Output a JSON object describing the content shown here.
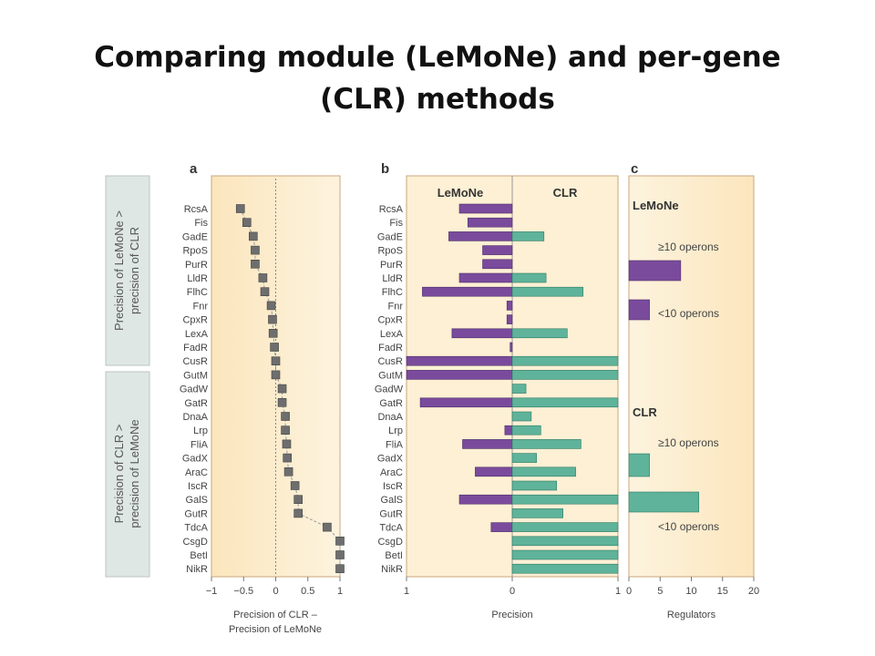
{
  "slide": {
    "title_line1": "Comparing module (LeMoNe) and per-gene",
    "title_line2": "(CLR) methods"
  },
  "figure": {
    "colors": {
      "background": "#fdf0d4",
      "lemone": "#7a4b9c",
      "clr": "#5fb39a",
      "dots": "#6e6e6e",
      "sidebox": "#dfe7e5",
      "frame": "#c9a77a"
    },
    "panels": {
      "a": {
        "letter": "a"
      },
      "b": {
        "letter": "b",
        "left_label": "LeMoNe",
        "right_label": "CLR"
      },
      "c": {
        "letter": "c"
      }
    },
    "side_labels": {
      "upper": [
        "Precision of LeMoNe >",
        "precision of CLR"
      ],
      "lower": [
        "Precision of CLR >",
        "precision of LeMoNe"
      ]
    }
  },
  "chart_data": [
    {
      "panel": "a",
      "type": "scatter",
      "title": "",
      "categories": [
        "RcsA",
        "Fis",
        "GadE",
        "RpoS",
        "PurR",
        "LldR",
        "FlhC",
        "Fnr",
        "CpxR",
        "LexA",
        "FadR",
        "CusR",
        "GutM",
        "GadW",
        "GatR",
        "DnaA",
        "Lrp",
        "FliA",
        "GadX",
        "AraC",
        "IscR",
        "GalS",
        "GutR",
        "TdcA",
        "CsgD",
        "BetI",
        "NikR"
      ],
      "values": [
        -0.55,
        -0.45,
        -0.35,
        -0.32,
        -0.32,
        -0.2,
        -0.17,
        -0.07,
        -0.05,
        -0.04,
        -0.02,
        0,
        0,
        0.1,
        0.1,
        0.15,
        0.15,
        0.17,
        0.18,
        0.2,
        0.3,
        0.35,
        0.35,
        0.8,
        1.0,
        1.0,
        1.0
      ],
      "xlabel_lines": [
        "Precision of CLR –",
        "Precision of LeMoNe"
      ],
      "xlim": [
        -1,
        1
      ],
      "xticks": [
        "−1",
        "−0.5",
        "0",
        "0.5",
        "1"
      ],
      "reference_line": 0,
      "grid": false
    },
    {
      "panel": "b",
      "type": "bar",
      "title": "",
      "categories": [
        "RcsA",
        "Fis",
        "GadE",
        "RpoS",
        "PurR",
        "LldR",
        "FlhC",
        "Fnr",
        "CpxR",
        "LexA",
        "FadR",
        "CusR",
        "GutM",
        "GadW",
        "GatR",
        "DnaA",
        "Lrp",
        "FliA",
        "GadX",
        "AraC",
        "IscR",
        "GalS",
        "GutR",
        "TdcA",
        "CsgD",
        "BetI",
        "NikR"
      ],
      "series": [
        {
          "name": "LeMoNe",
          "values": [
            0.5,
            0.42,
            0.6,
            0.28,
            0.28,
            0.5,
            0.85,
            0.05,
            0.05,
            0.57,
            0.02,
            1.0,
            1.0,
            0,
            0.87,
            0,
            0.07,
            0.47,
            0,
            0.35,
            0,
            0.5,
            0,
            0.2,
            0,
            0,
            0
          ]
        },
        {
          "name": "CLR",
          "values": [
            0,
            0,
            0.3,
            0,
            0,
            0.32,
            0.67,
            0,
            0,
            0.52,
            0,
            1.0,
            1.0,
            0.13,
            1.0,
            0.18,
            0.27,
            0.65,
            0.23,
            0.6,
            0.42,
            1.0,
            0.48,
            1.0,
            1.0,
            1.0,
            1.0
          ]
        }
      ],
      "xlabel": "Precision",
      "xticks": [
        "1",
        "0",
        "1"
      ],
      "xlim": [
        -1,
        1
      ],
      "grid": false
    },
    {
      "panel": "c",
      "type": "bar",
      "title": "",
      "groups": [
        {
          "name": "LeMoNe",
          "bars": [
            {
              "label": "≥10 operons",
              "value": 8.3
            },
            {
              "label": "<10 operons",
              "value": 3.3
            }
          ]
        },
        {
          "name": "CLR",
          "bars": [
            {
              "label": "≥10 operons",
              "value": 3.3
            },
            {
              "label": "<10 operons",
              "value": 11.2
            }
          ]
        }
      ],
      "xlabel": "Regulators",
      "xlim": [
        0,
        20
      ],
      "xticks": [
        "0",
        "5",
        "10",
        "15",
        "20"
      ],
      "grid": false
    }
  ]
}
